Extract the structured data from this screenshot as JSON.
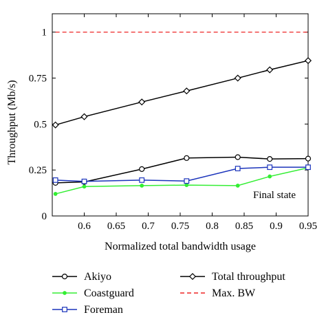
{
  "chart_data": {
    "type": "line",
    "xlabel": "Normalized total bandwidth usage",
    "ylabel": "Throughput (Mb/s)",
    "xlim": [
      0.55,
      0.95
    ],
    "ylim": [
      0,
      1.1
    ],
    "xticks": [
      0.6,
      0.65,
      0.7,
      0.75,
      0.8,
      0.85,
      0.9,
      0.95
    ],
    "xtick_labels": [
      "0.6",
      "0.65",
      "0.7",
      "0.75",
      "0.8",
      "0.85",
      "0.9",
      "0.95"
    ],
    "yticks": [
      0,
      0.25,
      0.5,
      0.75,
      1
    ],
    "ytick_labels": [
      "0",
      "0.25",
      "0.5",
      "0.75",
      "1"
    ],
    "annotation": "Final state",
    "grid": false,
    "legend_position": "below",
    "series": [
      {
        "name": "Akiyo",
        "color": "#000000",
        "marker": "circle",
        "line_style": "solid",
        "x": [
          0.555,
          0.6,
          0.69,
          0.76,
          0.84,
          0.89,
          0.95
        ],
        "y": [
          0.18,
          0.185,
          0.255,
          0.315,
          0.32,
          0.31,
          0.312
        ]
      },
      {
        "name": "Coastguard",
        "color": "#33ee33",
        "marker": "dot",
        "line_style": "solid",
        "x": [
          0.555,
          0.6,
          0.69,
          0.76,
          0.84,
          0.89,
          0.95
        ],
        "y": [
          0.12,
          0.16,
          0.165,
          0.168,
          0.165,
          0.215,
          0.262
        ]
      },
      {
        "name": "Foreman",
        "color": "#1a33bb",
        "marker": "square",
        "line_style": "solid",
        "x": [
          0.555,
          0.6,
          0.69,
          0.76,
          0.84,
          0.89,
          0.95
        ],
        "y": [
          0.195,
          0.188,
          0.195,
          0.19,
          0.258,
          0.265,
          0.265
        ]
      },
      {
        "name": "Total throughput",
        "color": "#000000",
        "marker": "diamond",
        "line_style": "solid",
        "x": [
          0.555,
          0.6,
          0.69,
          0.76,
          0.84,
          0.89,
          0.95
        ],
        "y": [
          0.495,
          0.54,
          0.62,
          0.68,
          0.75,
          0.795,
          0.845
        ]
      },
      {
        "name": "Max. BW",
        "color": "#ee2222",
        "marker": "none",
        "line_style": "dashed",
        "x": [
          0.555,
          0.95
        ],
        "y": [
          1,
          1
        ]
      }
    ]
  }
}
